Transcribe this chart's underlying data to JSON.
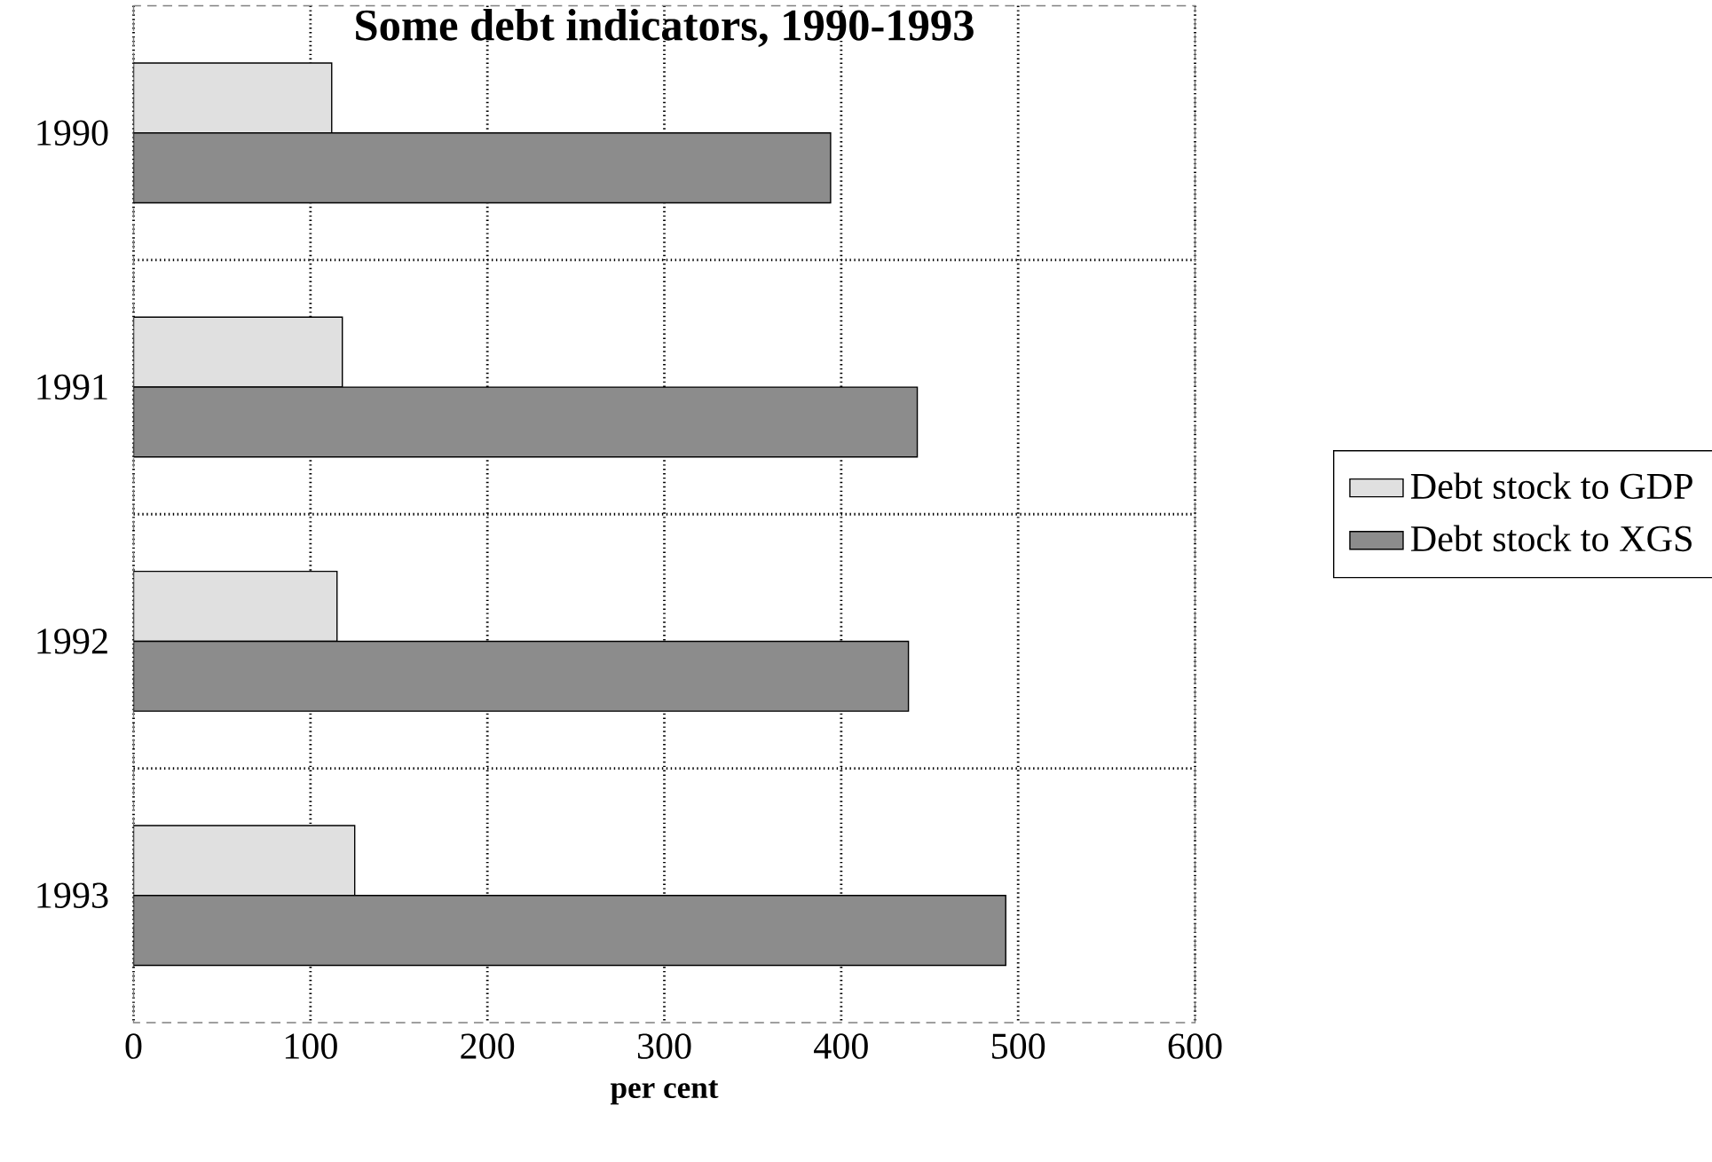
{
  "chart_data": {
    "type": "bar",
    "orientation": "horizontal",
    "title": "**Some debt indicators, 1990-1993**",
    "xlabel": "per cent",
    "categories": [
      "1990",
      "1991",
      "1992",
      "1993"
    ],
    "series": [
      {
        "name": "Debt stock to GDP",
        "color": "#e0e0e0",
        "values": [
          112,
          118,
          115,
          125
        ]
      },
      {
        "name": "Debt stock to XGS",
        "color": "#8c8c8c",
        "values": [
          394,
          443,
          438,
          493
        ]
      }
    ],
    "xlim": [
      0,
      600
    ],
    "xticks": [
      0,
      100,
      200,
      300,
      400,
      500,
      600
    ],
    "grid": true,
    "legend": "right"
  }
}
